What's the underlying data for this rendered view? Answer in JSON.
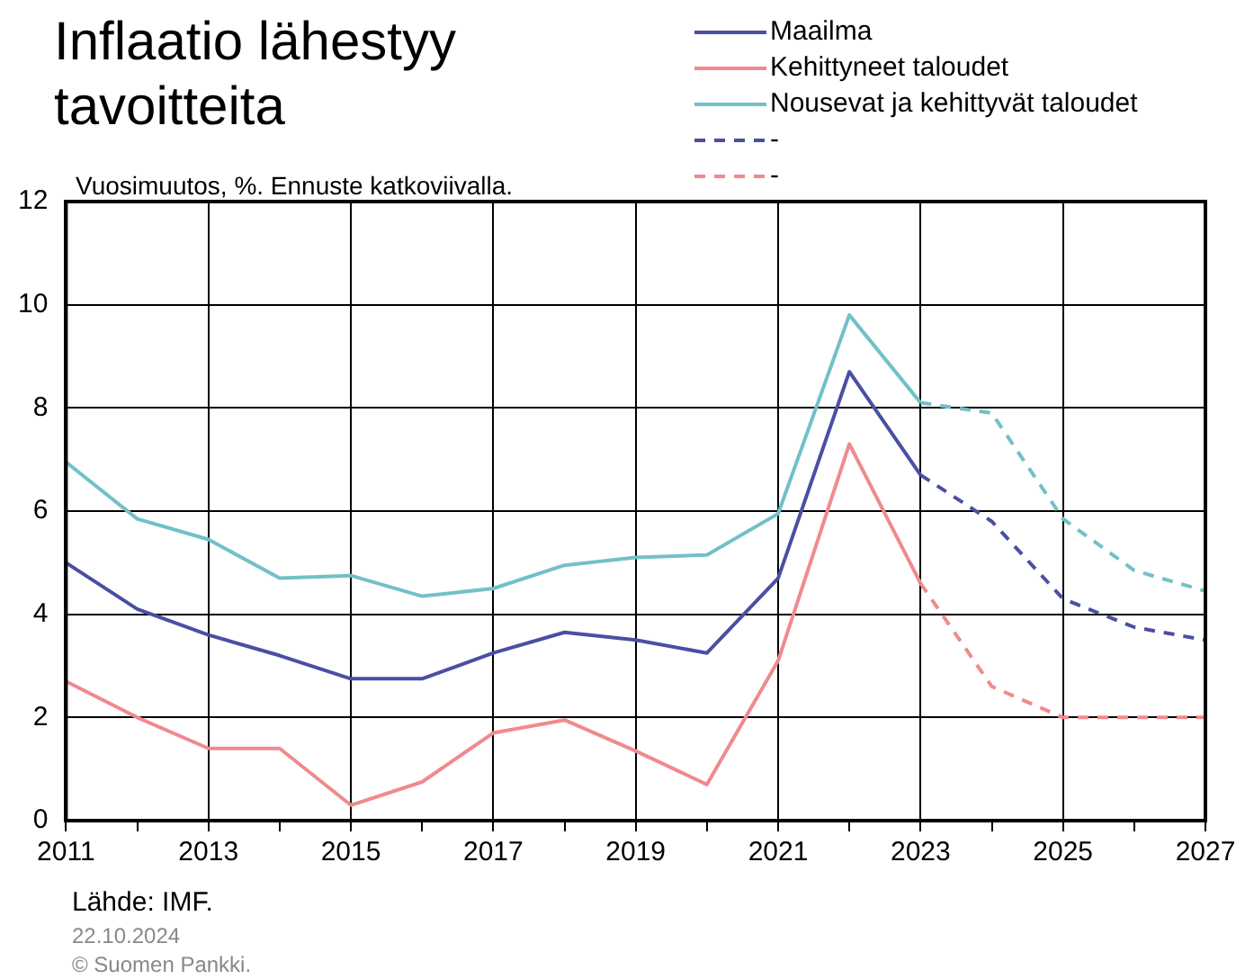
{
  "chart_data": {
    "type": "line",
    "title": "Inflaatio lähestyy tavoitteita",
    "subtitle": "Vuosimuutos, %. Ennuste katkoviivalla.",
    "annotations": [
      "Lähde: IMF.",
      "22.10.2024",
      "© Suomen Pankki."
    ],
    "xlim": [
      2011,
      2027
    ],
    "xticks": [
      2011,
      {
        "value": 2012,
        "label": null
      },
      2013,
      {
        "value": 2014,
        "label": null
      },
      2015,
      {
        "value": 2016,
        "label": null
      },
      2017,
      {
        "value": 2018,
        "label": null
      },
      2019,
      {
        "value": 2020,
        "label": null
      },
      2021,
      {
        "value": 2022,
        "label": null
      },
      2023,
      {
        "value": 2024,
        "label": null
      },
      2025,
      {
        "value": 2026,
        "label": null
      },
      2027
    ],
    "ylim": [
      0,
      12
    ],
    "yticks": [
      0,
      2,
      4,
      6,
      8,
      10,
      12
    ],
    "grid": true,
    "legend": "top right",
    "series": [
      {
        "name": "Maailma",
        "color": "#4a4fa3",
        "line_style": "solid",
        "x": [
          2011,
          2012,
          2013,
          2014,
          2015,
          2016,
          2017,
          2018,
          2019,
          2020,
          2021,
          2022,
          2023
        ],
        "values": [
          5.0,
          4.1,
          3.6,
          3.2,
          2.75,
          2.75,
          3.25,
          3.65,
          3.5,
          3.25,
          4.7,
          8.7,
          6.7
        ]
      },
      {
        "name": "Kehittyneet taloudet",
        "color": "#f08a8e",
        "line_style": "solid",
        "x": [
          2011,
          2012,
          2013,
          2014,
          2015,
          2016,
          2017,
          2018,
          2019,
          2020,
          2021,
          2022,
          2023
        ],
        "values": [
          2.7,
          2.0,
          1.4,
          1.4,
          0.3,
          0.75,
          1.7,
          1.95,
          1.35,
          0.7,
          3.1,
          7.3,
          4.6
        ]
      },
      {
        "name": "Nousevat ja kehittyvät taloudet",
        "color": "#72c0c8",
        "line_style": "solid",
        "x": [
          2011,
          2012,
          2013,
          2014,
          2015,
          2016,
          2017,
          2018,
          2019,
          2020,
          2021,
          2022,
          2023
        ],
        "values": [
          6.95,
          5.85,
          5.45,
          4.7,
          4.75,
          4.35,
          4.5,
          4.95,
          5.1,
          5.15,
          5.95,
          9.8,
          8.1
        ]
      },
      {
        "name": "-",
        "color": "#4a4fa3",
        "line_style": "dashed",
        "x": [
          2023,
          2024,
          2025,
          2026,
          2027
        ],
        "values": [
          6.7,
          5.8,
          4.3,
          3.75,
          3.5
        ]
      },
      {
        "name": "-",
        "color": "#f08a8e",
        "line_style": "dashed",
        "x": [
          2023,
          2024,
          2025,
          2026,
          2027
        ],
        "values": [
          4.6,
          2.6,
          2.0,
          2.0,
          2.0
        ]
      },
      {
        "color": "#72c0c8",
        "line_style": "dashed",
        "x": [
          2023,
          2024,
          2025,
          2026,
          2027
        ],
        "values": [
          8.1,
          7.9,
          5.85,
          4.85,
          4.45
        ]
      }
    ]
  }
}
